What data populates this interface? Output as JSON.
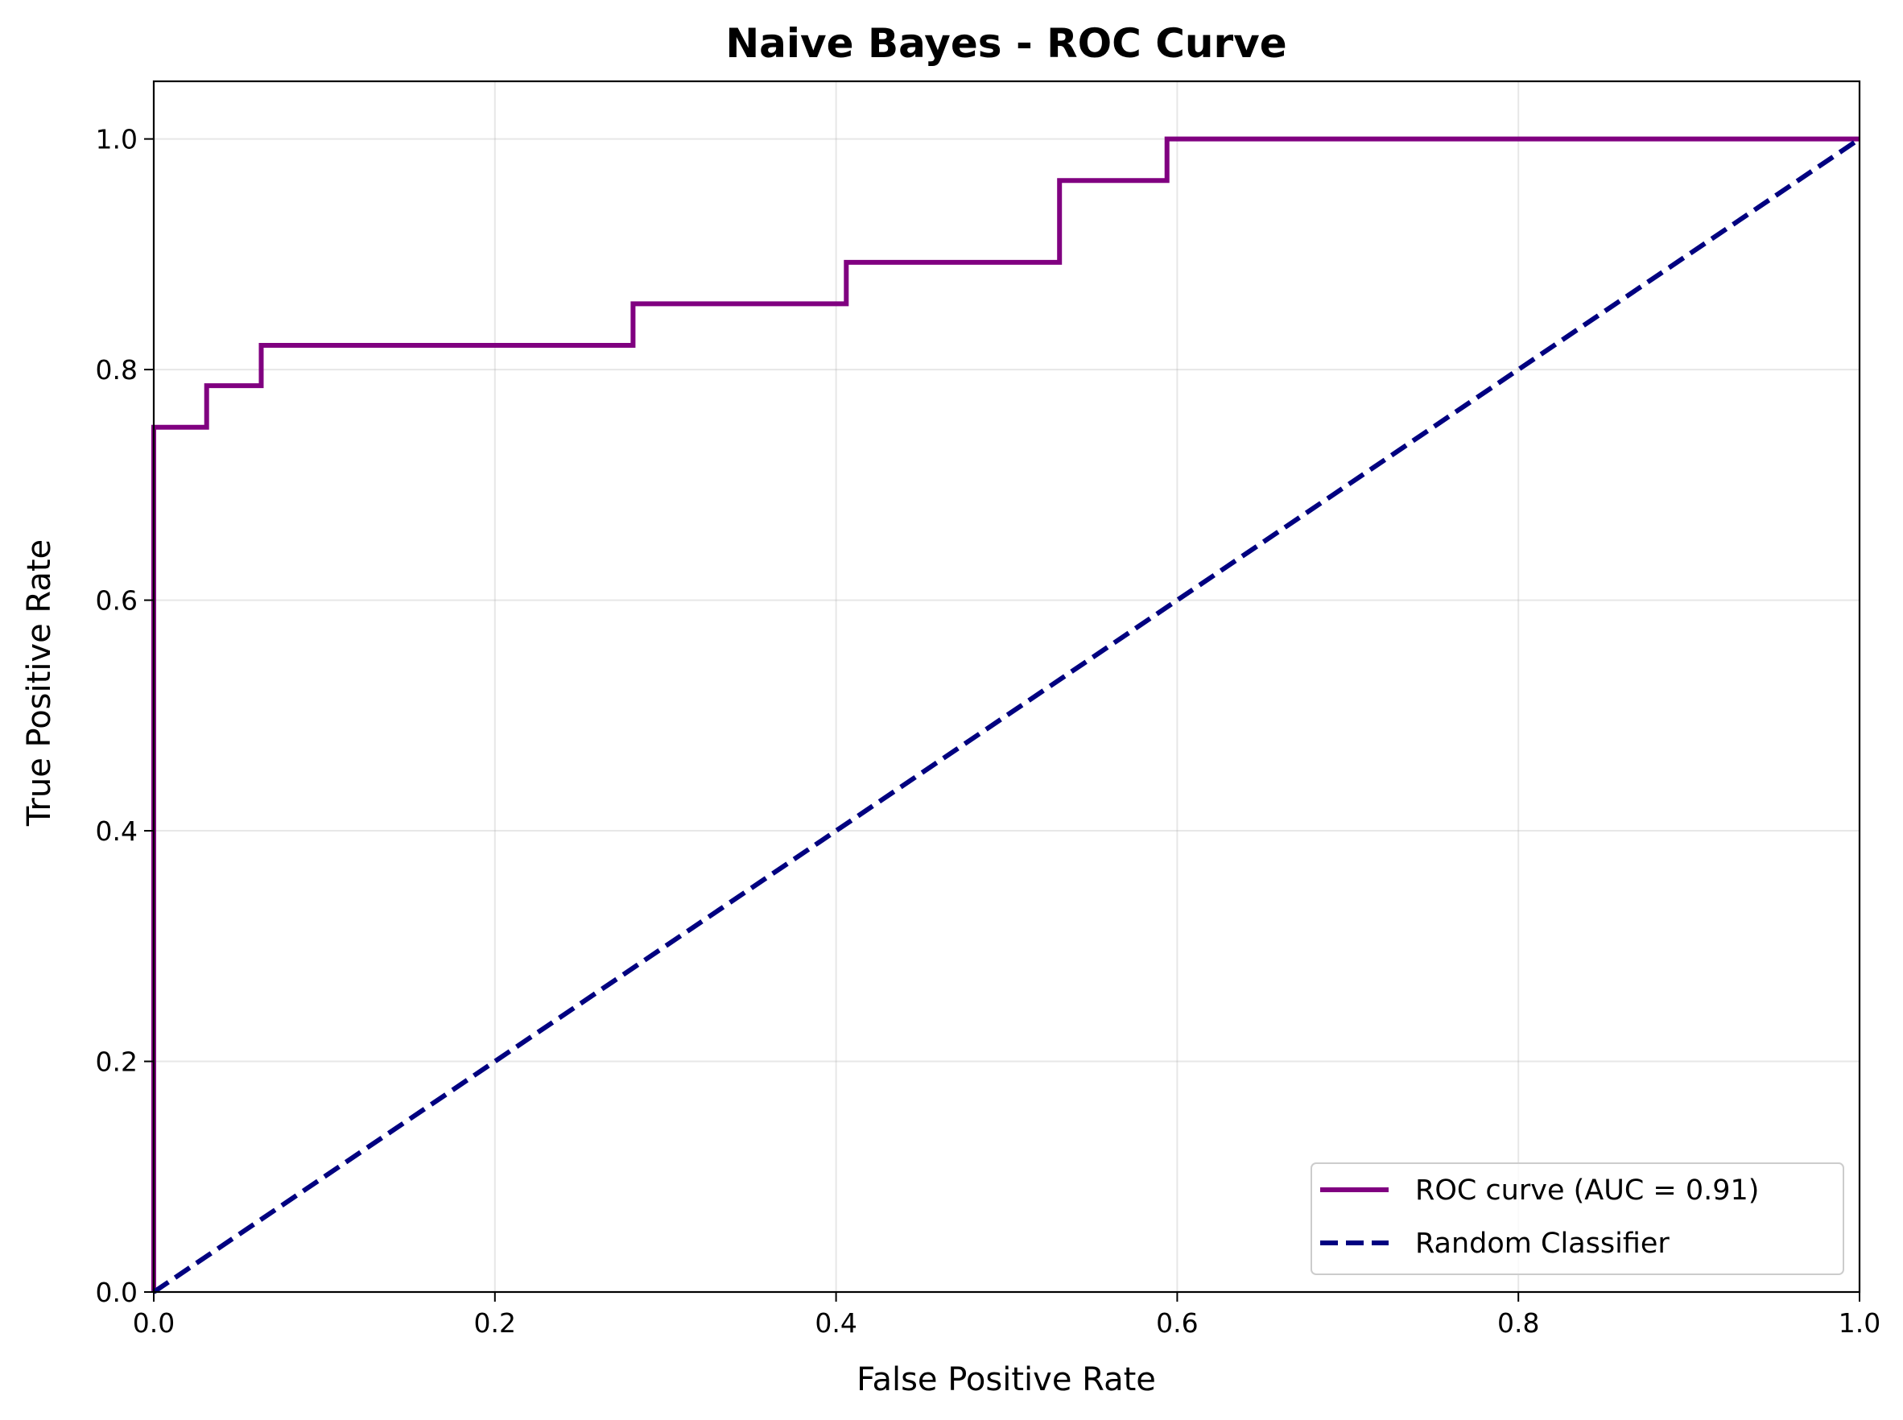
{
  "chart_data": {
    "type": "line",
    "title": "Naive Bayes - ROC Curve",
    "xlabel": "False Positive Rate",
    "ylabel": "True Positive Rate",
    "xlim": [
      0.0,
      1.0
    ],
    "ylim": [
      0.0,
      1.05
    ],
    "grid": true,
    "legend_position": "lower-right",
    "x_ticks": [
      "0.0",
      "0.2",
      "0.4",
      "0.6",
      "0.8",
      "1.0"
    ],
    "y_ticks": [
      "0.0",
      "0.2",
      "0.4",
      "0.6",
      "0.8",
      "1.0"
    ],
    "series": [
      {
        "name": "ROC curve (AUC = 0.91)",
        "color": "#800080",
        "style": "solid",
        "x": [
          0.0,
          0.0,
          0.031,
          0.031,
          0.063,
          0.063,
          0.281,
          0.281,
          0.406,
          0.406,
          0.531,
          0.531,
          0.594,
          0.594,
          1.0
        ],
        "y": [
          0.0,
          0.75,
          0.75,
          0.786,
          0.786,
          0.821,
          0.821,
          0.857,
          0.857,
          0.893,
          0.893,
          0.964,
          0.964,
          1.0,
          1.0
        ]
      },
      {
        "name": "Random Classifier",
        "color": "#000080",
        "style": "dashed",
        "x": [
          0.0,
          1.0
        ],
        "y": [
          0.0,
          1.0
        ]
      }
    ]
  }
}
